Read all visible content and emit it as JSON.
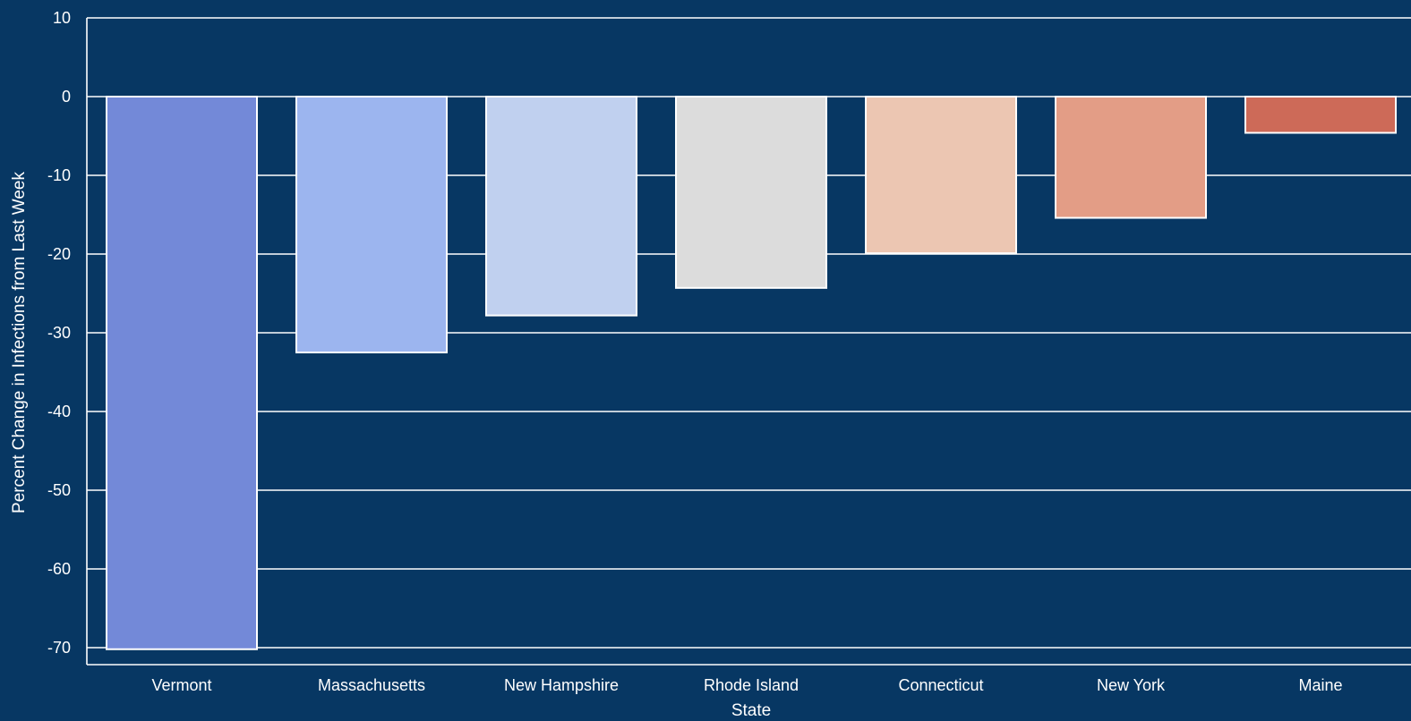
{
  "chart_data": {
    "type": "bar",
    "title": "",
    "xlabel": "State",
    "ylabel": "Percent Change in Infections from Last Week",
    "categories": [
      "Vermont",
      "Massachusetts",
      "New Hampshire",
      "Rhode Island",
      "Connecticut",
      "New York",
      "Maine"
    ],
    "values": [
      -70.2,
      -32.5,
      -27.8,
      -24.3,
      -19.9,
      -15.4,
      -4.6
    ],
    "colors": [
      "#7389d8",
      "#9cb5ef",
      "#c0d0ef",
      "#dcdcdc",
      "#ecc6b2",
      "#e39d86",
      "#cd6a58"
    ],
    "ylim": [
      -72,
      10
    ],
    "yticks": [
      10,
      0,
      -10,
      -20,
      -30,
      -40,
      -50,
      -60,
      -70
    ],
    "grid": true,
    "legend": "none",
    "background_color": "#073763",
    "grid_color": "#ffffff",
    "text_color": "#ffffff"
  }
}
